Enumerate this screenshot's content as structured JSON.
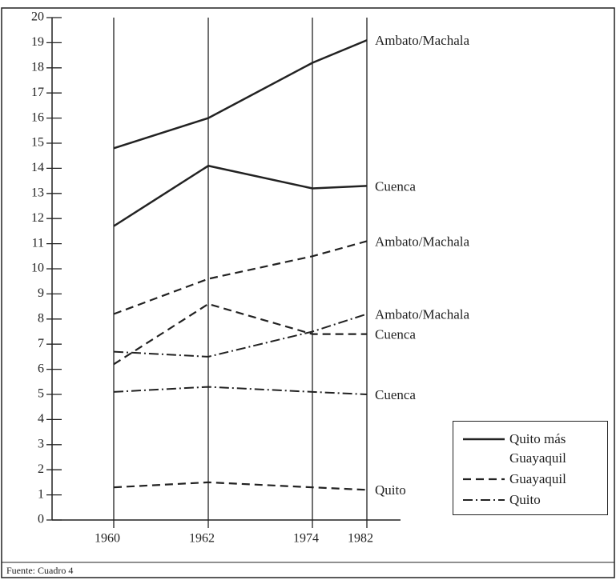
{
  "chart_data": {
    "type": "line",
    "categories": [
      "1960",
      "1962",
      "1974",
      "1982"
    ],
    "ylim": [
      0,
      20
    ],
    "yticks": [
      0,
      1,
      2,
      3,
      4,
      5,
      6,
      7,
      8,
      9,
      10,
      11,
      12,
      13,
      14,
      15,
      16,
      17,
      18,
      19,
      20
    ],
    "grid": true,
    "color": "#222222",
    "series": [
      {
        "name": "Ambato/Machala",
        "style": "solid",
        "values": [
          14.8,
          16.0,
          18.2,
          19.1
        ]
      },
      {
        "name": "Cuenca",
        "style": "solid",
        "values": [
          11.7,
          14.1,
          13.2,
          13.3
        ]
      },
      {
        "name": "Ambato/Machala",
        "style": "dashed",
        "values": [
          8.2,
          9.6,
          10.5,
          11.1
        ]
      },
      {
        "name": "Cuenca",
        "style": "dashed",
        "values": [
          6.2,
          8.6,
          7.4,
          7.4
        ]
      },
      {
        "name": "Ambato/Machala",
        "style": "dashdot",
        "values": [
          6.7,
          6.5,
          7.5,
          8.2
        ]
      },
      {
        "name": "Cuenca",
        "style": "dashdot",
        "values": [
          5.1,
          5.3,
          5.1,
          5.0
        ]
      },
      {
        "name": "Quito",
        "style": "dashed",
        "values": [
          1.3,
          1.5,
          1.3,
          1.2
        ]
      }
    ],
    "legend": [
      {
        "label": "Quito más Guayaquil",
        "style": "solid"
      },
      {
        "label": "Guayaquil",
        "style": "dashed"
      },
      {
        "label": "Quito",
        "style": "dashdot"
      }
    ],
    "source": "Fuente: Cuadro 4"
  }
}
